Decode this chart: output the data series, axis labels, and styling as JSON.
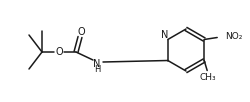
{
  "bg_color": "#ffffff",
  "line_color": "#1a1a1a",
  "line_width": 1.1,
  "figsize": [
    2.5,
    1.02
  ],
  "dpi": 100,
  "xlim": [
    0,
    250
  ],
  "ylim": [
    0,
    102
  ]
}
